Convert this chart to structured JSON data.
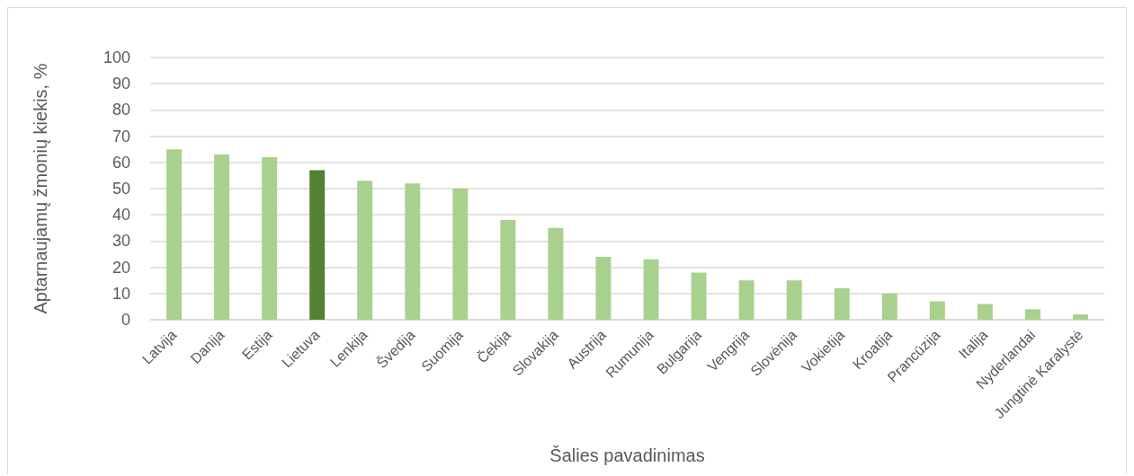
{
  "chart_data": {
    "type": "bar",
    "xlabel": "Šalies pavadinimas",
    "ylabel": "Aptarnaujamų žmonių kiekis, %",
    "categories": [
      "Latvija",
      "Danija",
      "Estija",
      "Lietuva",
      "Lenkija",
      "Švedija",
      "Suomija",
      "Čekija",
      "Slovakija",
      "Austrija",
      "Rumunija",
      "Bulgarija",
      "Vengrija",
      "Slovėnija",
      "Vokietija",
      "Kroatija",
      "Prancūzija",
      "Italija",
      "Nyderlandai",
      "Jungtinė Karalystė"
    ],
    "values": [
      65,
      63,
      62,
      57,
      53,
      52,
      50,
      38,
      35,
      24,
      23,
      18,
      15,
      15,
      12,
      10,
      7,
      6,
      4,
      2
    ],
    "colors": [
      "#a9d18e",
      "#a9d18e",
      "#a9d18e",
      "#548235",
      "#a9d18e",
      "#a9d18e",
      "#a9d18e",
      "#a9d18e",
      "#a9d18e",
      "#a9d18e",
      "#a9d18e",
      "#a9d18e",
      "#a9d18e",
      "#a9d18e",
      "#a9d18e",
      "#a9d18e",
      "#a9d18e",
      "#a9d18e",
      "#a9d18e",
      "#a9d18e"
    ],
    "ylim": [
      0,
      100
    ],
    "yticks": [
      0,
      10,
      20,
      30,
      40,
      50,
      60,
      70,
      80,
      90,
      100
    ],
    "grid": "y"
  }
}
